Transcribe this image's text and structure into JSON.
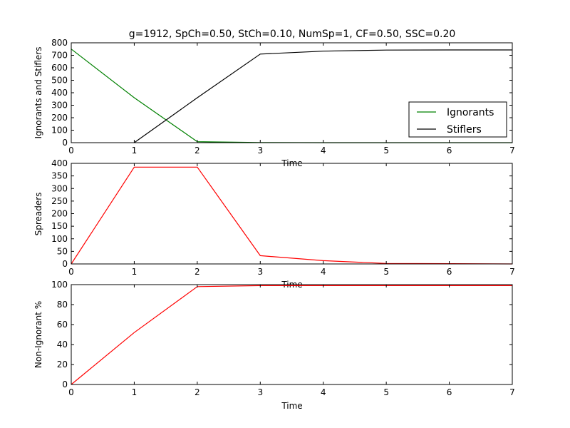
{
  "figure": {
    "title": "g=1912, SpCh=0.50, StCh=0.10, NumSp=1, CF=0.50, SSC=0.20"
  },
  "chart_data": [
    {
      "type": "line",
      "title": "g=1912, SpCh=0.50, StCh=0.10, NumSp=1, CF=0.50, SSC=0.20",
      "xlabel": "Time",
      "ylabel": "Ignorants and Stiflers",
      "xlim": [
        0,
        7
      ],
      "ylim": [
        0,
        800
      ],
      "xticks": [
        0,
        1,
        2,
        3,
        4,
        5,
        6,
        7
      ],
      "yticks": [
        0,
        100,
        200,
        300,
        400,
        500,
        600,
        700,
        800
      ],
      "legend": "lower-right",
      "series": [
        {
          "name": "Ignorants",
          "color": "#008000",
          "x": [
            0,
            1,
            2,
            3,
            4,
            5,
            6,
            7
          ],
          "y": [
            750,
            360,
            8,
            1,
            0,
            0,
            0,
            0
          ]
        },
        {
          "name": "Stiflers",
          "color": "#000000",
          "x": [
            1,
            2,
            3,
            4,
            5,
            6,
            7
          ],
          "y": [
            0,
            360,
            710,
            733,
            742,
            743,
            743
          ]
        }
      ]
    },
    {
      "type": "line",
      "xlabel": "Time",
      "ylabel": "Spreaders",
      "xlim": [
        0,
        7
      ],
      "ylim": [
        0,
        400
      ],
      "xticks": [
        0,
        1,
        2,
        3,
        4,
        5,
        6,
        7
      ],
      "yticks": [
        0,
        50,
        100,
        150,
        200,
        250,
        300,
        350,
        400
      ],
      "series": [
        {
          "color": "#ff0000",
          "x": [
            0,
            1,
            2,
            3,
            4,
            5,
            6,
            7
          ],
          "y": [
            0,
            385,
            385,
            33,
            13,
            2,
            1,
            0
          ]
        }
      ]
    },
    {
      "type": "line",
      "xlabel": "Time",
      "ylabel": "Non-Ignorant %",
      "xlim": [
        0,
        7
      ],
      "ylim": [
        0,
        100
      ],
      "xticks": [
        0,
        1,
        2,
        3,
        4,
        5,
        6,
        7
      ],
      "yticks": [
        0,
        20,
        40,
        60,
        80,
        100
      ],
      "series": [
        {
          "color": "#ff0000",
          "x": [
            0,
            1,
            2,
            3,
            4,
            5,
            6,
            7
          ],
          "y": [
            0,
            52,
            98,
            99,
            99,
            99,
            99,
            99
          ]
        }
      ]
    }
  ]
}
